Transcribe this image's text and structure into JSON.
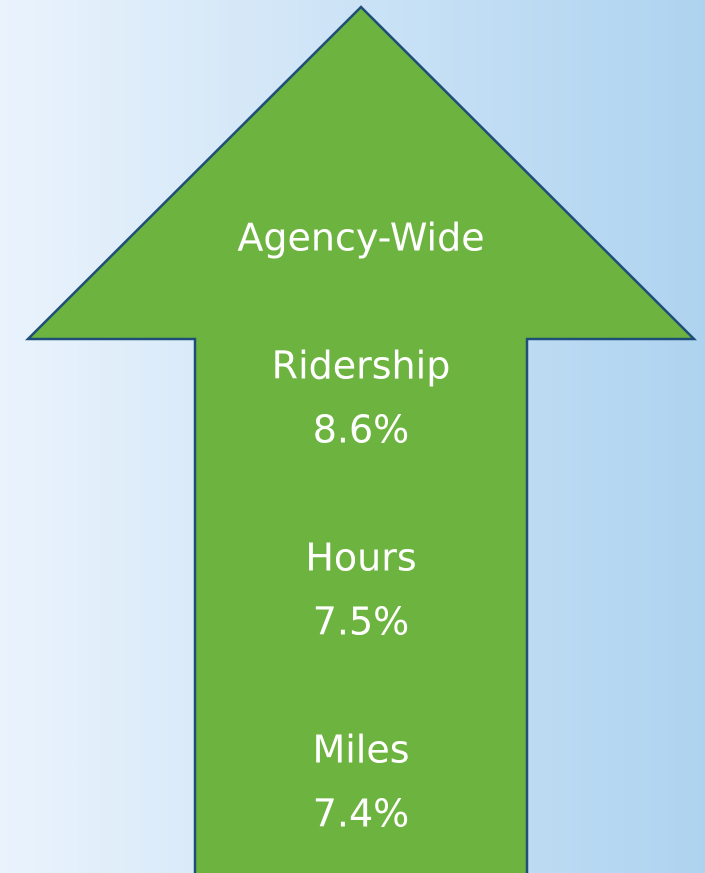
{
  "title": "Agency-Wide",
  "metrics": [
    {
      "label": "Ridership",
      "value": "8.6%"
    },
    {
      "label": "Hours",
      "value": "7.5%"
    },
    {
      "label": "Miles",
      "value": "7.4%"
    }
  ]
}
